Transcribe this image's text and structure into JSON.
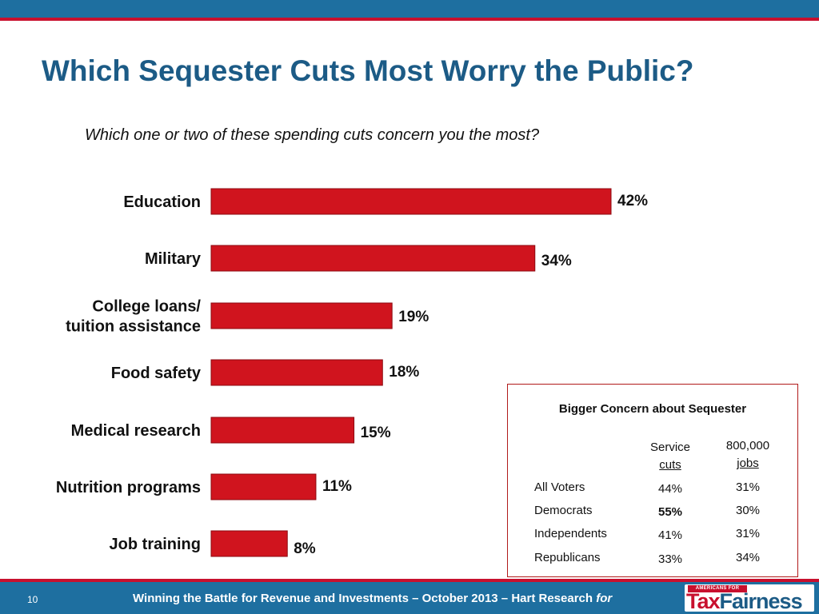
{
  "title": "Which Sequester Cuts Most Worry the Public?",
  "subtitle": "Which one or two of these spending cuts concern you the most?",
  "colors": {
    "bar": "#d0141e",
    "title": "#1c5b86",
    "band": "#1e6fa0",
    "accent": "#c8102e"
  },
  "chart_data": {
    "type": "bar",
    "orientation": "horizontal",
    "title": "Which Sequester Cuts Most Worry the Public?",
    "subtitle": "Which one or two of these spending cuts concern you the most?",
    "xlabel": "",
    "ylabel": "",
    "xlim": [
      0,
      42
    ],
    "grid": false,
    "categories": [
      [
        "Education"
      ],
      [
        "Military"
      ],
      [
        "College loans/",
        "tuition assistance"
      ],
      [
        "Food safety"
      ],
      [
        "Medical research"
      ],
      [
        "Nutrition programs"
      ],
      [
        "Job training"
      ]
    ],
    "values": [
      42,
      34,
      19,
      18,
      15,
      11,
      8
    ],
    "labels": [
      "42%",
      "34%",
      "19%",
      "18%",
      "15%",
      "11%",
      "8%"
    ]
  },
  "inset": {
    "title": "Bigger Concern about Sequester",
    "col1": {
      "line1": "Service",
      "line2": "cuts"
    },
    "col2": {
      "line1": "800,000",
      "line2": "jobs"
    },
    "rows": [
      {
        "group": "All Voters",
        "service": "44%",
        "jobs": "31%"
      },
      {
        "group": "Democrats",
        "service": "55%",
        "jobs": "30%"
      },
      {
        "group": "Independents",
        "service": "41%",
        "jobs": "31%"
      },
      {
        "group": "Republicans",
        "service": "33%",
        "jobs": "34%"
      }
    ]
  },
  "footer": {
    "page": "10",
    "text": "Winning the Battle for Revenue and Investments – October 2013 – Hart Research ",
    "text_italic": "for",
    "logo_top": "AMERICANS FOR",
    "logo_tax": "Tax",
    "logo_fair": "Fairness"
  }
}
